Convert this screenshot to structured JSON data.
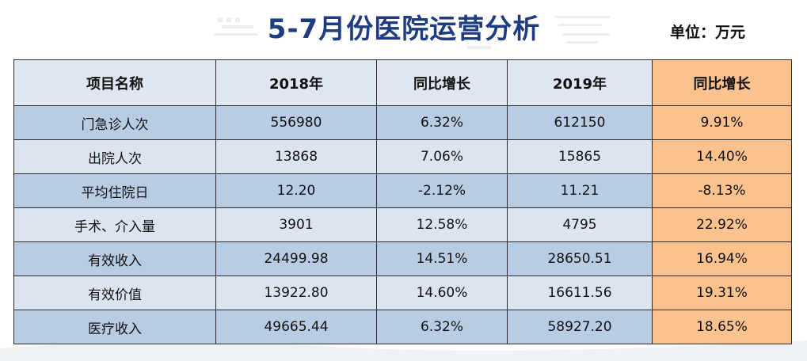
{
  "title": "5-7月份医院运营分析",
  "unit": "单位：万元",
  "table": {
    "headers": [
      "项目名称",
      "2018年",
      "同比增长",
      "2019年",
      "同比增长"
    ],
    "rows": [
      [
        "门急诊人次",
        "556980",
        "6.32%",
        "612150",
        "9.91%"
      ],
      [
        "出院人次",
        "13868",
        "7.06%",
        "15865",
        "14.40%"
      ],
      [
        "平均住院日",
        "12.20",
        "-2.12%",
        "11.21",
        "-8.13%"
      ],
      [
        "手术、介入量",
        "3901",
        "12.58%",
        "4795",
        "22.92%"
      ],
      [
        "有效收入",
        "24499.98",
        "14.51%",
        "28650.51",
        "16.94%"
      ],
      [
        "有效价值",
        "13922.80",
        "14.60%",
        "16611.56",
        "19.31%"
      ],
      [
        "医疗收入",
        "49665.44",
        "6.32%",
        "58927.20",
        "18.65%"
      ]
    ]
  },
  "colors": {
    "title": "#1f3c80",
    "row_dark": "#b8cce4",
    "row_light": "#dce4f0",
    "header": "#dfe5f1",
    "highlight": "#fbc290"
  }
}
